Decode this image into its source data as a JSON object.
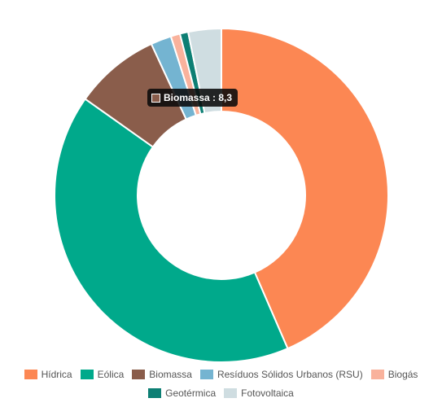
{
  "chart_data": {
    "type": "pie",
    "variant": "donut",
    "categories": [
      "Hídrica",
      "Eólica",
      "Biomassa",
      "Resíduos Sólidos Urbanos (RSU)",
      "Biogás",
      "Geotérmica",
      "Fotovoltaica"
    ],
    "values": [
      43.5,
      41.3,
      8.3,
      2.0,
      0.9,
      0.8,
      3.2
    ],
    "colors": [
      "#fc8753",
      "#00a98b",
      "#8a5d4b",
      "#74b4d1",
      "#f9b29c",
      "#0d7f74",
      "#cfdde1"
    ],
    "legend_position": "bottom",
    "tooltip": {
      "label": "Biomassa",
      "value": "8,3",
      "text": "Biomassa : 8,3",
      "color": "#8a5d4b"
    }
  }
}
